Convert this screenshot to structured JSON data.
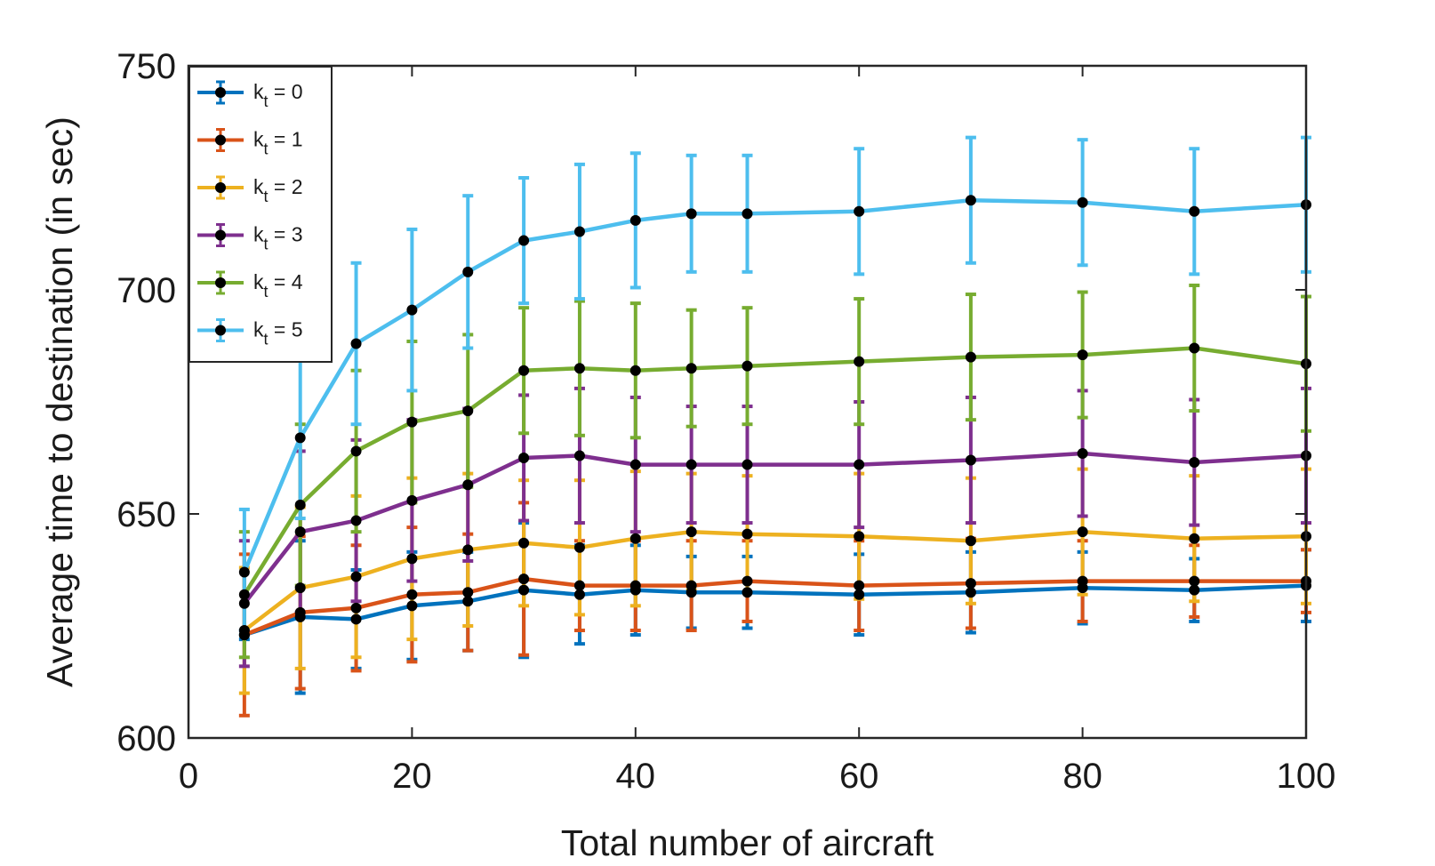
{
  "chart_data": {
    "type": "line",
    "title": "",
    "xlabel": "Total number of aircraft",
    "ylabel": "Average time to destination (in sec)",
    "xlim": [
      0,
      100
    ],
    "ylim": [
      600,
      750
    ],
    "xticks": [
      0,
      20,
      40,
      60,
      80,
      100
    ],
    "yticks": [
      600,
      650,
      700,
      750
    ],
    "grid": false,
    "legend_position": "top-left",
    "marker_color": "#000000",
    "x": [
      5,
      10,
      15,
      20,
      25,
      30,
      35,
      40,
      45,
      50,
      60,
      70,
      80,
      90,
      100
    ],
    "series": [
      {
        "label": "k",
        "sub": "t",
        "suffix": " = 0",
        "color": "#0072BD",
        "values": [
          623,
          627,
          626.5,
          629.5,
          630.5,
          633,
          632,
          633,
          632.5,
          632.5,
          632,
          632.5,
          633.5,
          633,
          634
        ],
        "err": [
          1,
          17,
          11,
          12,
          11,
          15,
          11,
          10,
          8,
          8,
          9,
          9,
          8,
          7,
          8
        ]
      },
      {
        "label": "k",
        "sub": "t",
        "suffix": " = 1",
        "color": "#D95319",
        "values": [
          623,
          628,
          629,
          632,
          632.5,
          635.5,
          634,
          634,
          634,
          635,
          634,
          634.5,
          635,
          635,
          635
        ],
        "err": [
          18,
          17,
          14,
          15,
          13,
          17,
          10,
          10,
          10,
          9,
          10,
          10,
          9,
          8,
          7
        ]
      },
      {
        "label": "k",
        "sub": "t",
        "suffix": " = 2",
        "color": "#EDB120",
        "values": [
          624,
          633.5,
          636,
          640,
          642,
          643.5,
          642.5,
          644.5,
          646,
          645.5,
          645,
          644,
          646,
          644.5,
          645
        ]
      },
      {
        "label": "k",
        "sub": "t",
        "suffix": " = 3",
        "color": "#7E2F8E",
        "values": [
          630,
          646,
          648.5,
          653,
          656.5,
          662.5,
          663,
          661,
          661,
          661,
          661,
          662,
          663.5,
          661.5,
          663
        ]
      },
      {
        "label": "k",
        "sub": "t",
        "suffix": " = 4",
        "color": "#77AC30",
        "values": [
          632,
          652,
          664,
          670.5,
          673,
          682,
          682.5,
          682,
          682.5,
          683,
          684,
          685,
          685.5,
          687,
          683.5
        ]
      },
      {
        "label": "k",
        "sub": "t",
        "suffix": " = 5",
        "color": "#4DBEEE",
        "values": [
          637,
          667,
          688,
          695.5,
          704,
          711,
          713,
          715.5,
          717,
          717,
          717.5,
          720,
          719.5,
          717.5,
          719
        ]
      }
    ]
  }
}
